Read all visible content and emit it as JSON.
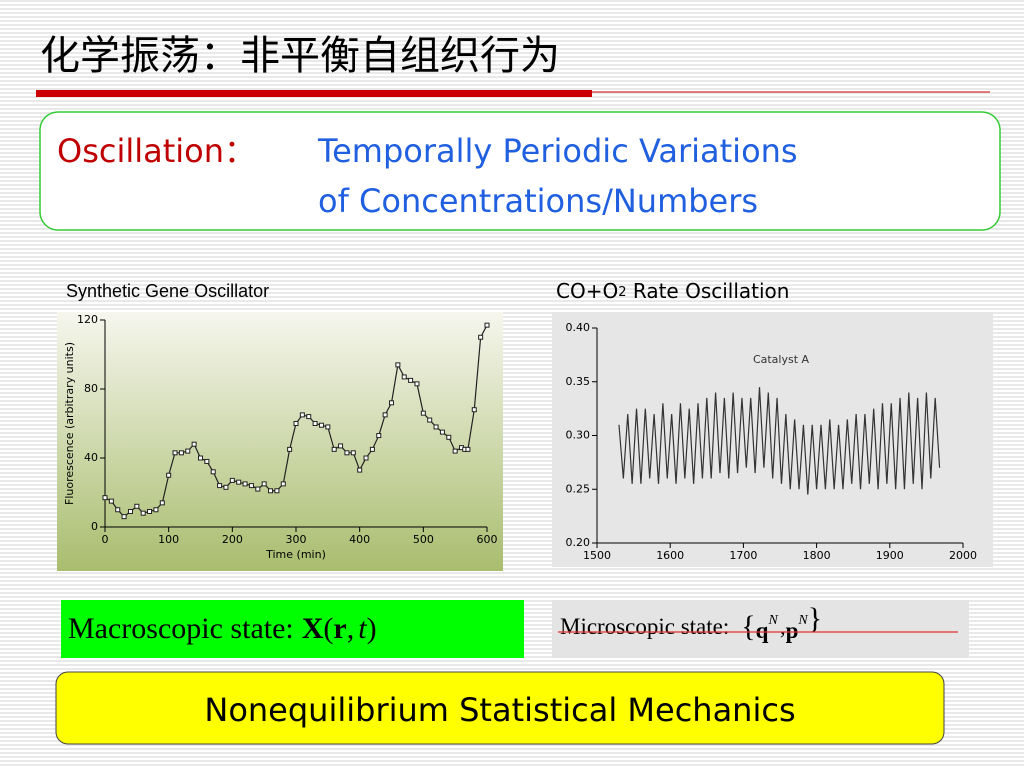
{
  "title": "化学振荡：非平衡自组织行为",
  "oscillation": {
    "label": "Oscillation：",
    "lines": [
      "Temporally Periodic Variations",
      "of Concentrations/Numbers"
    ]
  },
  "chart_data": [
    {
      "type": "line",
      "caption": "Synthetic Gene Oscillator",
      "x_label": "Time (min)",
      "y_label": "Fluorescence (arbitrary units)",
      "x": [
        0,
        10,
        20,
        30,
        40,
        50,
        60,
        70,
        80,
        90,
        100,
        110,
        120,
        130,
        140,
        150,
        160,
        170,
        180,
        190,
        200,
        210,
        220,
        230,
        240,
        250,
        260,
        270,
        280,
        290,
        300,
        310,
        320,
        330,
        340,
        350,
        360,
        370,
        380,
        390,
        400,
        410,
        420,
        430,
        440,
        450,
        460,
        470,
        480,
        490,
        500,
        510,
        520,
        530,
        540,
        550,
        560,
        565,
        570,
        580,
        590,
        600
      ],
      "series": [
        {
          "color": "#222222",
          "values": [
            17,
            15,
            10,
            6,
            9,
            12,
            8,
            9,
            10,
            14,
            30,
            43,
            43,
            44,
            48,
            40,
            38,
            32,
            24,
            23,
            27,
            26,
            25,
            24,
            22,
            25,
            21,
            21,
            25,
            45,
            60,
            65,
            64,
            60,
            59,
            58,
            45,
            47,
            43,
            43,
            33,
            40,
            45,
            53,
            65,
            72,
            94,
            87,
            85,
            83,
            66,
            62,
            58,
            55,
            52,
            44,
            46,
            45,
            45,
            68,
            110,
            117
          ]
        }
      ],
      "xlim": [
        0,
        600
      ],
      "xticks": [
        0,
        100,
        200,
        300,
        400,
        500,
        600
      ],
      "ylim": [
        0,
        120
      ],
      "yticks": [
        0,
        40,
        80,
        120
      ]
    },
    {
      "type": "line",
      "caption": [
        "CO+O",
        "2",
        " Rate Oscillation"
      ],
      "annotation": "Catalyst A",
      "x": [
        1530,
        1536,
        1542,
        1548,
        1554,
        1560,
        1566,
        1572,
        1578,
        1584,
        1590,
        1596,
        1602,
        1608,
        1614,
        1620,
        1626,
        1632,
        1638,
        1644,
        1650,
        1656,
        1662,
        1668,
        1674,
        1680,
        1686,
        1692,
        1698,
        1704,
        1710,
        1716,
        1722,
        1728,
        1734,
        1740,
        1746,
        1752,
        1758,
        1764,
        1770,
        1776,
        1782,
        1788,
        1794,
        1800,
        1806,
        1812,
        1818,
        1824,
        1830,
        1836,
        1842,
        1848,
        1854,
        1860,
        1866,
        1872,
        1878,
        1884,
        1890,
        1896,
        1902,
        1908,
        1914,
        1920,
        1926,
        1932,
        1938,
        1944,
        1950,
        1956,
        1962,
        1968
      ],
      "series": [
        {
          "color": "#333333",
          "values": [
            0.31,
            0.26,
            0.32,
            0.255,
            0.325,
            0.255,
            0.325,
            0.26,
            0.32,
            0.255,
            0.33,
            0.26,
            0.32,
            0.255,
            0.33,
            0.26,
            0.325,
            0.255,
            0.33,
            0.26,
            0.335,
            0.26,
            0.34,
            0.265,
            0.335,
            0.26,
            0.34,
            0.265,
            0.335,
            0.27,
            0.335,
            0.265,
            0.345,
            0.27,
            0.34,
            0.26,
            0.335,
            0.255,
            0.32,
            0.25,
            0.315,
            0.25,
            0.31,
            0.245,
            0.31,
            0.25,
            0.31,
            0.25,
            0.315,
            0.25,
            0.31,
            0.25,
            0.315,
            0.255,
            0.32,
            0.25,
            0.32,
            0.255,
            0.325,
            0.25,
            0.33,
            0.255,
            0.33,
            0.25,
            0.335,
            0.25,
            0.34,
            0.255,
            0.335,
            0.25,
            0.34,
            0.26,
            0.335,
            0.27
          ]
        }
      ],
      "xlim": [
        1500,
        2000
      ],
      "xticks": [
        1500,
        1600,
        1700,
        1800,
        1900,
        2000
      ],
      "ylim": [
        0.2,
        0.4
      ],
      "yticks": [
        {
          "value": 0.2,
          "label": "0.20"
        },
        {
          "value": 0.25,
          "label": "0.25"
        },
        {
          "value": 0.3,
          "label": "0.30"
        },
        {
          "value": 0.35,
          "label": "0.35"
        },
        {
          "value": 0.4,
          "label": "0.40"
        }
      ]
    }
  ],
  "macro": {
    "label": "Macroscopic state:",
    "formula": [
      "X",
      "(",
      "r",
      ",",
      "t",
      ")"
    ]
  },
  "micro": {
    "label": "Microscopic state:",
    "formula": [
      "{",
      "q",
      "N",
      ",",
      "p",
      "N",
      "}"
    ]
  },
  "banner": "Nonequilibrium Statistical Mechanics"
}
